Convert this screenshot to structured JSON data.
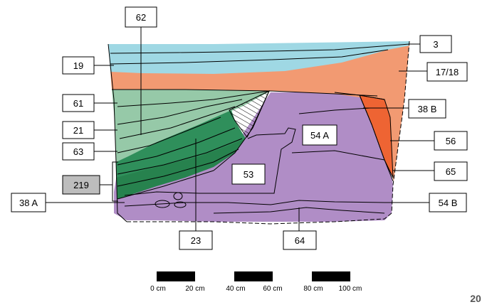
{
  "figure_number": "20",
  "colors": {
    "layer_3": "#9fd8e4",
    "layer_19": "#8fd0dd",
    "layer_17_18": "#f29a72",
    "layer_61": "#96c9a8",
    "layer_green_dark": "#2f8f5b",
    "layer_219": "#27824e",
    "layer_purple": "#b08dc6",
    "layer_56": "#ee6433",
    "hatch": "#000000",
    "label_grey": "#bdbdbd"
  },
  "labels": {
    "l62": "62",
    "l3": "3",
    "l19": "19",
    "l17_18": "17/18",
    "l61": "61",
    "l38b": "38 B",
    "l21": "21",
    "l54a": "54 A",
    "l56": "56",
    "l63": "63",
    "l53": "53",
    "l65": "65",
    "l219": "219",
    "l38a": "38 A",
    "l54b": "54 B",
    "l23": "23",
    "l64": "64"
  },
  "scale_bar": {
    "ticks": [
      "0 cm",
      "20 cm",
      "40 cm",
      "60 cm",
      "80 cm",
      "100 cm"
    ]
  }
}
